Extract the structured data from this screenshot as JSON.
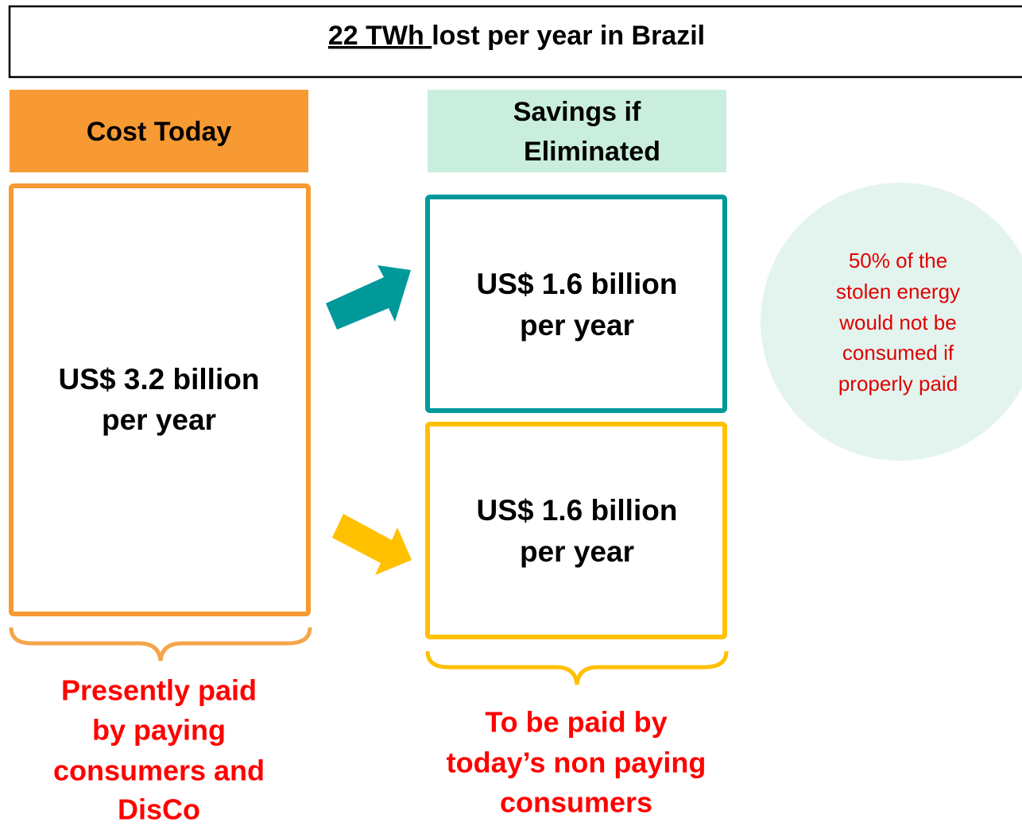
{
  "title": {
    "underlined": "22 TWh",
    "rest": "lost per year in Brazil"
  },
  "cost_today": {
    "header": "Cost Today",
    "box": [
      "US$ 3.2 billion",
      "per year"
    ],
    "caption": [
      "Presently paid",
      "by paying",
      "consumers and",
      "DisCo"
    ]
  },
  "savings": {
    "header": [
      "Savings if",
      "Eliminated"
    ],
    "box_top": [
      "US$ 1.6 billion",
      "per year"
    ],
    "box_bottom": [
      "US$ 1.6 billion",
      "per year"
    ],
    "caption": [
      "To be paid by",
      "today’s non paying",
      "consumers"
    ]
  },
  "note": [
    "50% of the",
    "stolen energy",
    "would not be",
    "consumed if",
    "properly paid"
  ]
}
